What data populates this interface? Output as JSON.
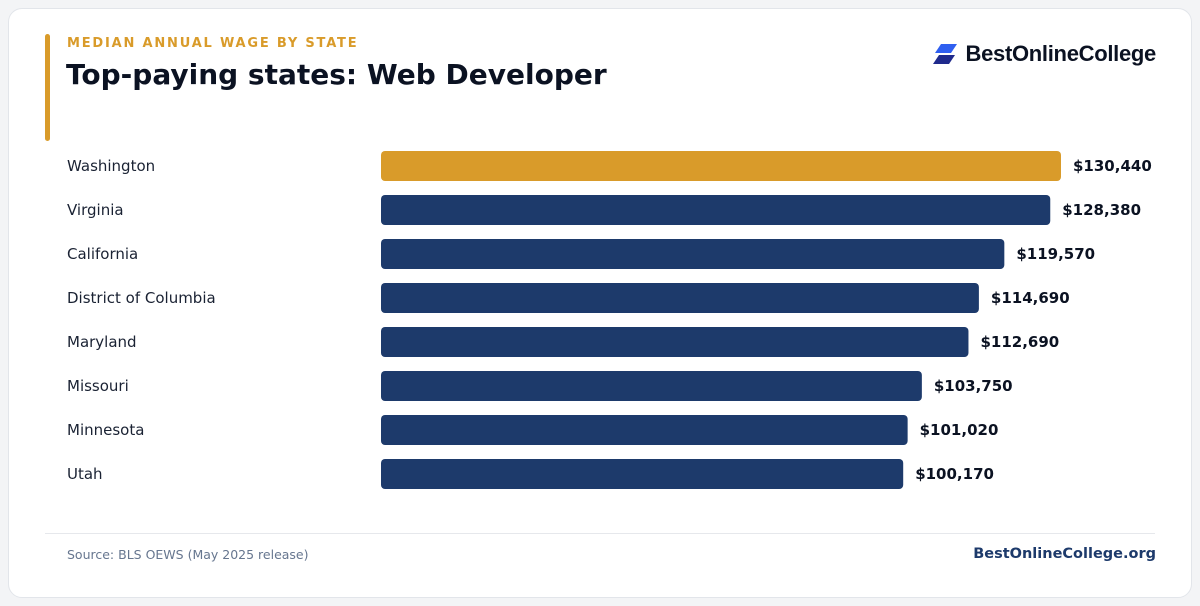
{
  "header": {
    "eyebrow": "MEDIAN ANNUAL WAGE BY STATE",
    "title": "Top-paying states: Web Developer"
  },
  "brand": {
    "name": "BestOnlineCollege",
    "logo_icon": "stacked-parallelogram-icon",
    "logo_colors": [
      "#2f5ff0",
      "#1f2a8c"
    ]
  },
  "footer": {
    "source": "Source: BLS OEWS (May 2025 release)",
    "site": "BestOnlineCollege.org"
  },
  "colors": {
    "highlight": "#d99b2a",
    "bar": "#1d3a6b",
    "label": "#1a2233",
    "value": "#0b1222"
  },
  "chart_data": {
    "type": "bar",
    "orientation": "horizontal",
    "categories": [
      "Washington",
      "Virginia",
      "California",
      "District of Columbia",
      "Maryland",
      "Missouri",
      "Minnesota",
      "Utah"
    ],
    "values": [
      130440,
      128380,
      119570,
      114690,
      112690,
      103750,
      101020,
      100170
    ],
    "value_labels": [
      "$130,440",
      "$128,380",
      "$119,570",
      "$114,690",
      "$112,690",
      "$103,750",
      "$101,020",
      "$100,170"
    ],
    "highlight_index": 0,
    "xlim": [
      0,
      130440
    ],
    "grid": false,
    "legend": "none"
  }
}
